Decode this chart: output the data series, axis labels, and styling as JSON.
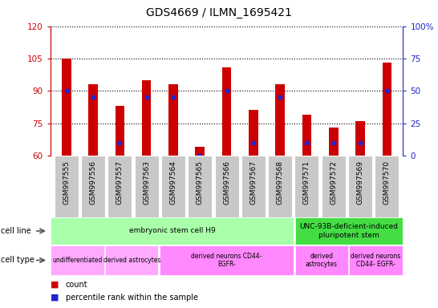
{
  "title": "GDS4669 / ILMN_1695421",
  "samples": [
    "GSM997555",
    "GSM997556",
    "GSM997557",
    "GSM997563",
    "GSM997564",
    "GSM997565",
    "GSM997566",
    "GSM997567",
    "GSM997568",
    "GSM997571",
    "GSM997572",
    "GSM997569",
    "GSM997570"
  ],
  "count_values": [
    105,
    93,
    83,
    95,
    93,
    64,
    101,
    81,
    93,
    79,
    73,
    76,
    103
  ],
  "percentile_values": [
    50,
    45,
    10,
    45,
    45,
    0,
    50,
    10,
    45,
    10,
    10,
    10,
    50
  ],
  "ylim_left": [
    60,
    120
  ],
  "ylim_right": [
    0,
    100
  ],
  "yticks_left": [
    60,
    75,
    90,
    105,
    120
  ],
  "yticks_right": [
    0,
    25,
    50,
    75,
    100
  ],
  "ytick_labels_left": [
    "60",
    "75",
    "90",
    "105",
    "120"
  ],
  "ytick_labels_right": [
    "0",
    "25",
    "50",
    "75",
    "100%"
  ],
  "bar_color": "#cc0000",
  "dot_color": "#2222cc",
  "cell_line_groups": [
    {
      "label": "embryonic stem cell H9",
      "start": 0,
      "end": 9,
      "color": "#aaffaa"
    },
    {
      "label": "UNC-93B-deficient-induced\npluripotent stem",
      "start": 9,
      "end": 13,
      "color": "#44dd44"
    }
  ],
  "cell_type_groups": [
    {
      "label": "undifferentiated",
      "start": 0,
      "end": 2,
      "color": "#ffaaff"
    },
    {
      "label": "derived astrocytes",
      "start": 2,
      "end": 4,
      "color": "#ffaaff"
    },
    {
      "label": "derived neurons CD44-\nEGFR-",
      "start": 4,
      "end": 9,
      "color": "#ff88ff"
    },
    {
      "label": "derived\nastrocytes",
      "start": 9,
      "end": 11,
      "color": "#ff88ff"
    },
    {
      "label": "derived neurons\nCD44- EGFR-",
      "start": 11,
      "end": 13,
      "color": "#ff88ff"
    }
  ],
  "left_axis_color": "#cc0000",
  "right_axis_color": "#2222cc",
  "bar_width": 0.35,
  "xtick_bg_color": "#c8c8c8"
}
